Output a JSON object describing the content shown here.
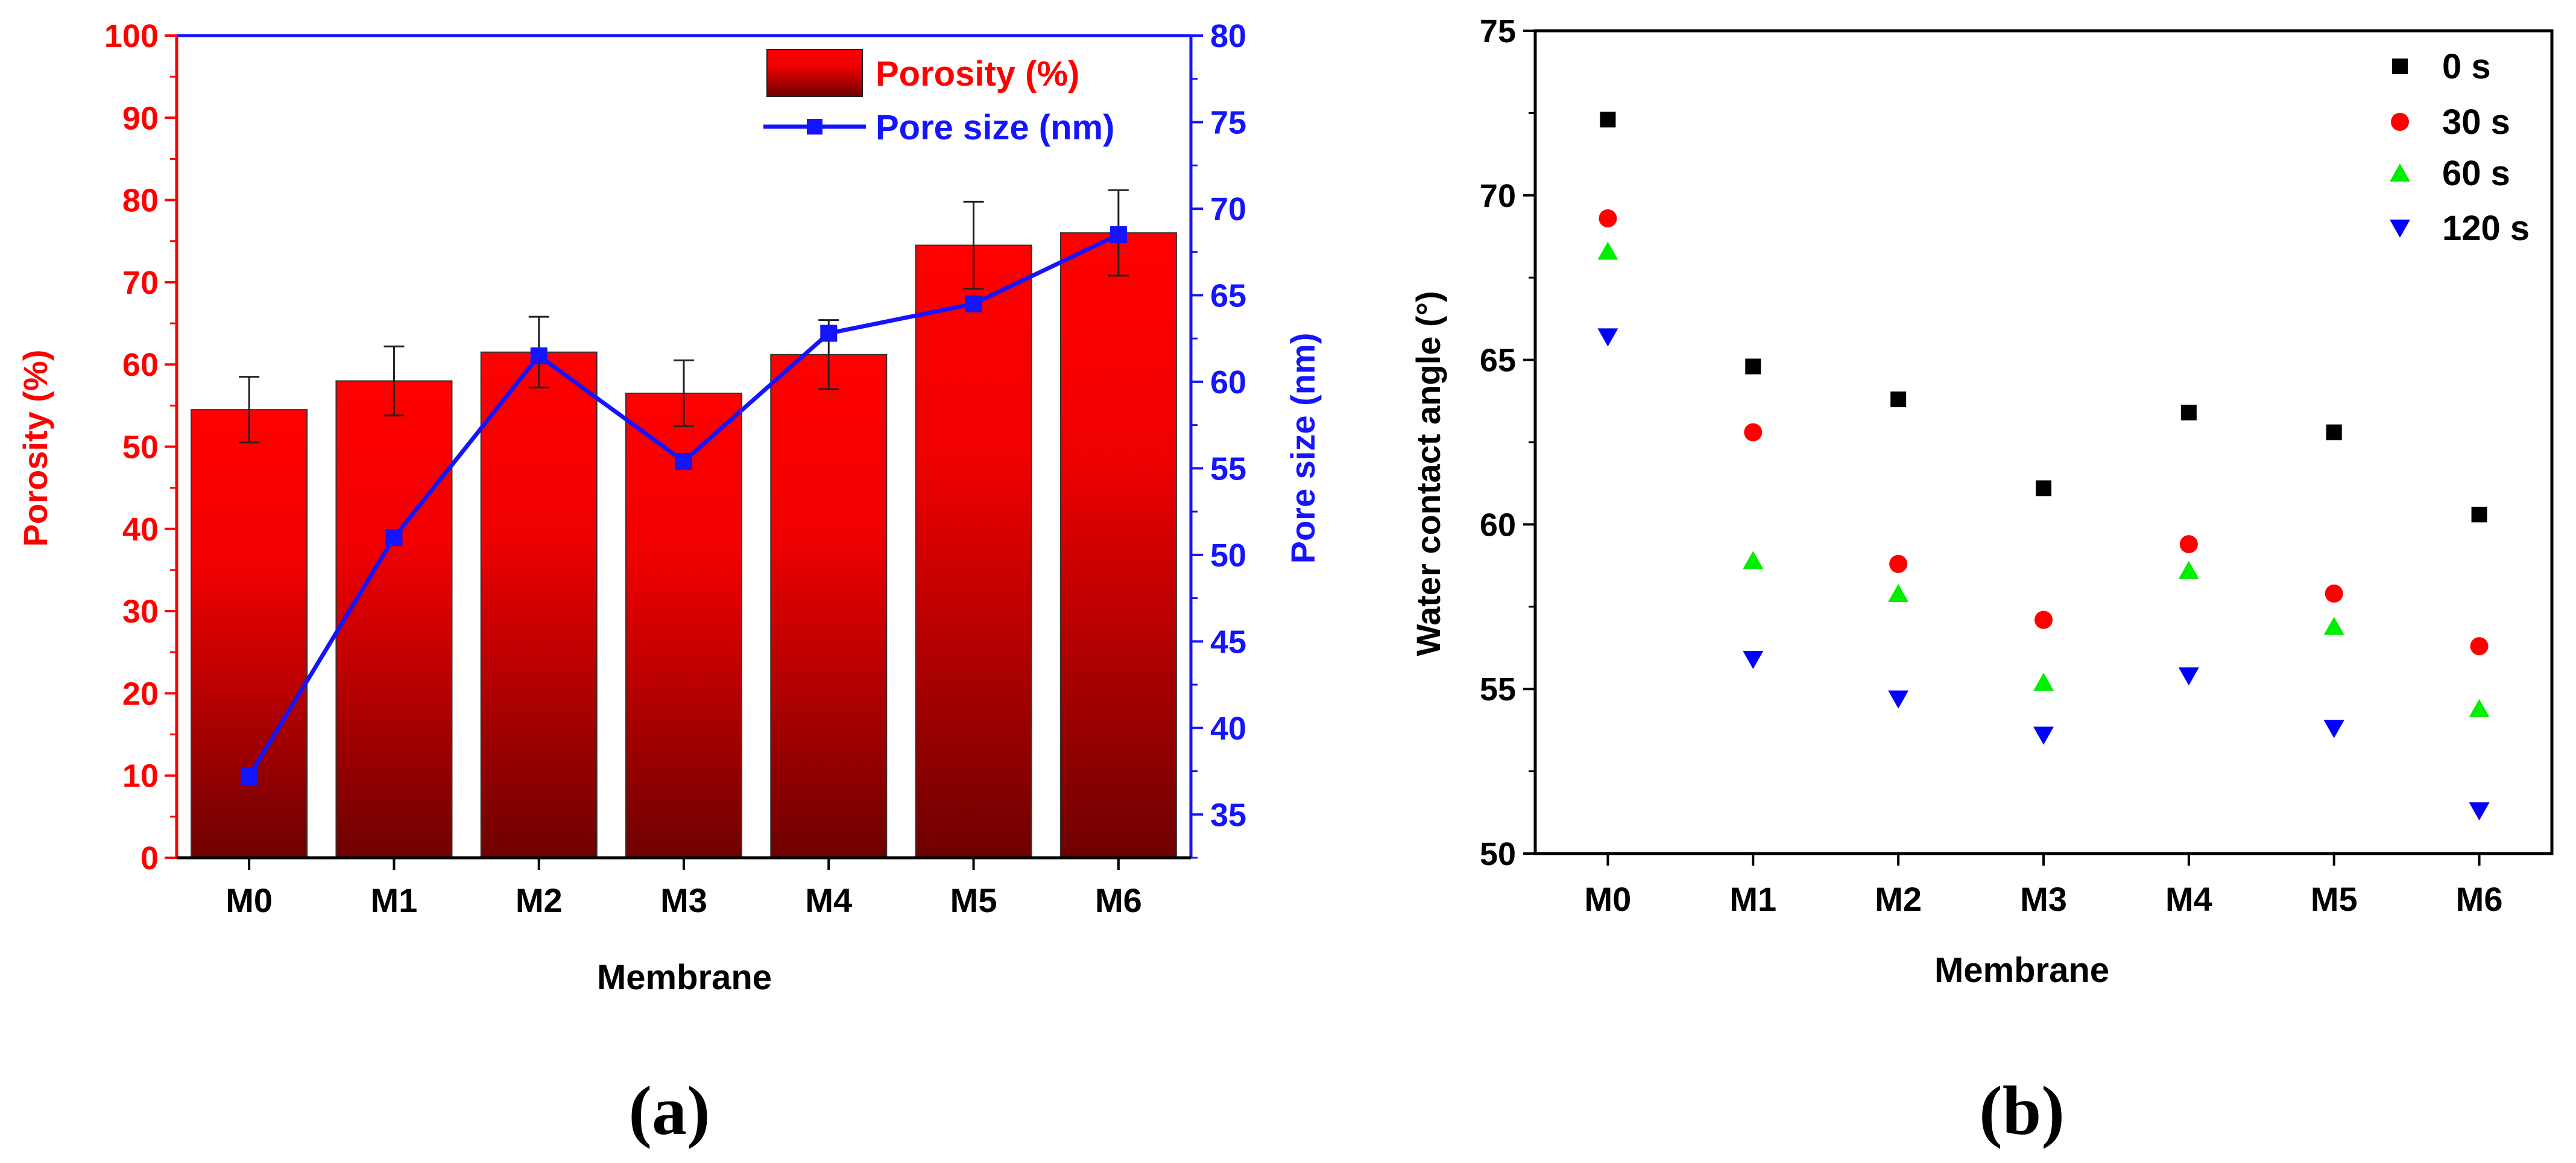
{
  "colors": {
    "porosity_red": "#ff0000",
    "porosity_dark": "#6e0000",
    "pore_blue": "#1414ff",
    "axis_black": "#000000",
    "s0": "#000000",
    "s30": "#ff0000",
    "s60": "#00ee00",
    "s120": "#0000ff"
  },
  "chart_data": [
    {
      "panel": "(a)",
      "type": "bar",
      "xlabel": "Membrane",
      "categories": [
        "M0",
        "M1",
        "M2",
        "M3",
        "M4",
        "M5",
        "M6"
      ],
      "y_left": {
        "label": "Porosity (%)",
        "lim": [
          0,
          100
        ],
        "ticks": [
          "0",
          "10",
          "20",
          "30",
          "40",
          "50",
          "60",
          "70",
          "80",
          "90",
          "100"
        ]
      },
      "y_right": {
        "label": "Pore size (nm)",
        "lim": [
          32.5,
          80
        ],
        "ticks": [
          "35",
          "40",
          "45",
          "50",
          "55",
          "60",
          "65",
          "70",
          "75",
          "80"
        ]
      },
      "series": [
        {
          "name": "Porosity (%)",
          "type": "bar",
          "axis": "left",
          "values": [
            54.5,
            58,
            61.5,
            56.5,
            61.2,
            74.5,
            76
          ],
          "errors": [
            4,
            4.2,
            4.3,
            4,
            4.2,
            5.3,
            5.2
          ]
        },
        {
          "name": "Pore size (nm)",
          "type": "line",
          "axis": "right",
          "values": [
            37.2,
            51,
            61.5,
            55.4,
            62.8,
            64.5,
            68.5
          ]
        }
      ],
      "legend_position": "top-right"
    },
    {
      "panel": "(b)",
      "type": "scatter",
      "xlabel": "Membrane",
      "ylabel": "Water contact angle (°)",
      "ylim": [
        50,
        75
      ],
      "y_ticks": [
        "50",
        "55",
        "60",
        "65",
        "70",
        "75"
      ],
      "categories": [
        "M0",
        "M1",
        "M2",
        "M3",
        "M4",
        "M5",
        "M6"
      ],
      "series": [
        {
          "name": "0 s",
          "marker": "square",
          "values": [
            72.3,
            64.8,
            63.8,
            61.1,
            63.4,
            62.8,
            60.3
          ]
        },
        {
          "name": "30 s",
          "marker": "circle",
          "values": [
            69.3,
            62.8,
            58.8,
            57.1,
            59.4,
            57.9,
            56.3
          ]
        },
        {
          "name": "60 s",
          "marker": "triangle-up",
          "values": [
            68.3,
            58.9,
            57.9,
            55.2,
            58.6,
            56.9,
            54.4
          ]
        },
        {
          "name": "120 s",
          "marker": "triangle-down",
          "values": [
            65.7,
            55.9,
            54.7,
            53.6,
            55.4,
            53.8,
            51.3
          ]
        }
      ],
      "legend_position": "top-right"
    }
  ]
}
